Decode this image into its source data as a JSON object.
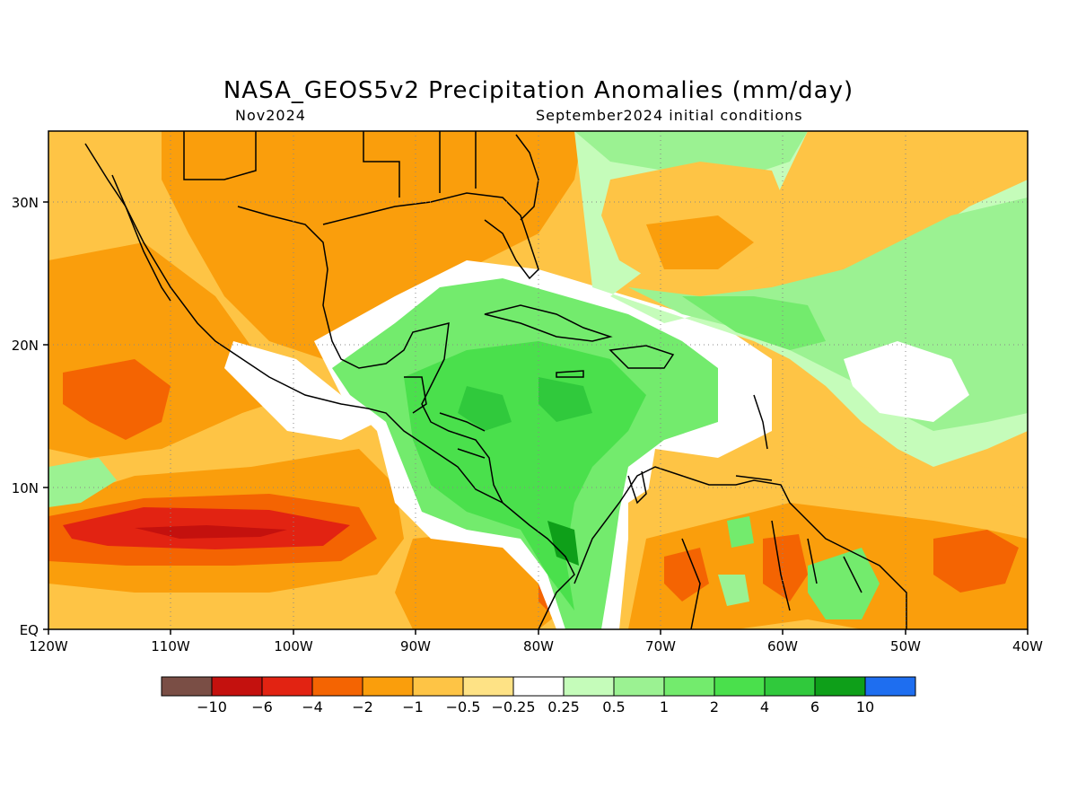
{
  "title": "NASA_GEOS5v2 Precipitation Anomalies (mm/day)",
  "subtitle_left": "Nov2024",
  "subtitle_right": "September2024 initial conditions",
  "map": {
    "lon_ticks": [
      "120W",
      "110W",
      "100W",
      "90W",
      "80W",
      "70W",
      "60W",
      "50W",
      "40W"
    ],
    "lat_ticks": [
      "EQ",
      "10N",
      "20N",
      "30N"
    ],
    "ocean_color": "#ffffff",
    "grid": "dotted"
  },
  "colorbar": {
    "colors": [
      "#7a4e45",
      "#c4110e",
      "#e22312",
      "#f46402",
      "#fa9e0c",
      "#fec445",
      "#fee285",
      "#ffffff",
      "#c5fcba",
      "#9bf292",
      "#73eb6d",
      "#4ae04c",
      "#30c93c",
      "#0e9f19",
      "#1e6ef0"
    ],
    "labels": [
      "-10",
      "-6",
      "-4",
      "-2",
      "-1",
      "-0.5",
      "-0.25",
      "0.25",
      "0.5",
      "1",
      "2",
      "4",
      "6",
      "10"
    ]
  }
}
